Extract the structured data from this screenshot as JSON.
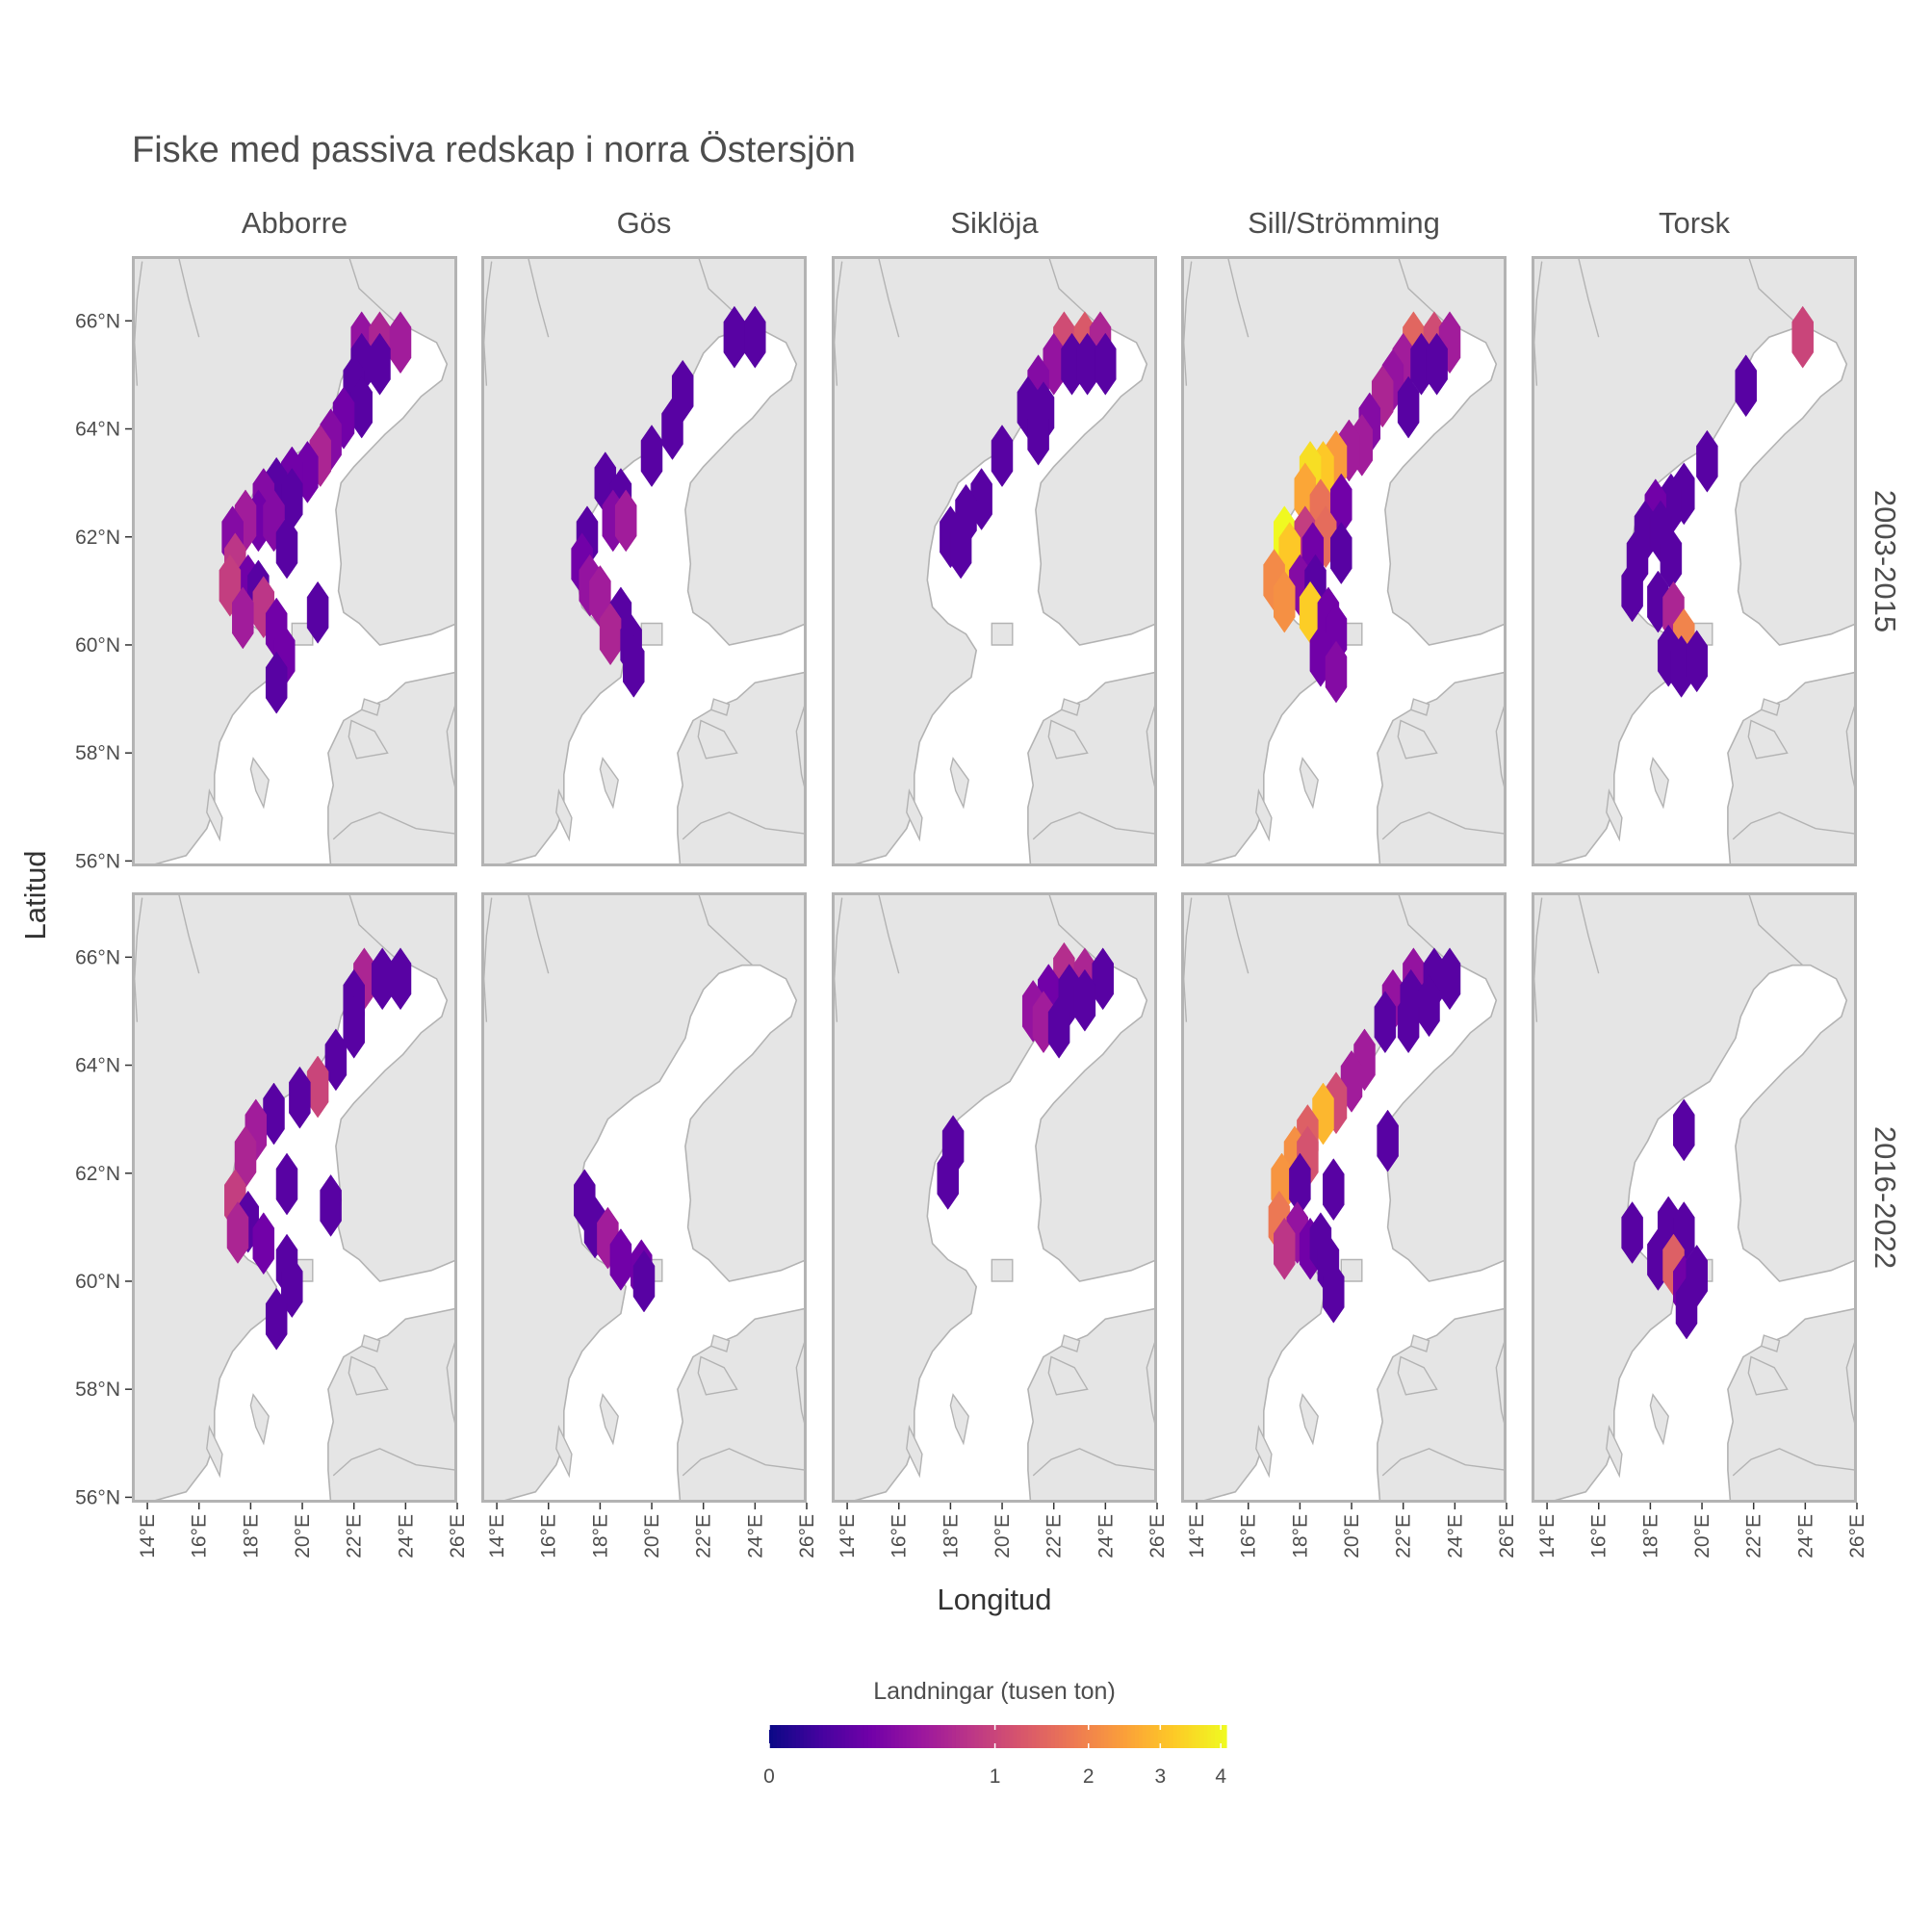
{
  "title": "Fiske med passiva redskap i norra Östersjön",
  "x_axis_title": "Longitud",
  "y_axis_title": "Latitud",
  "columns": [
    "Abborre",
    "Gös",
    "Siklöja",
    "Sill/Strömming",
    "Torsk"
  ],
  "rows": [
    "2003-2015",
    "2016-2022"
  ],
  "lon_ticks": [
    "14°E",
    "16°E",
    "18°E",
    "20°E",
    "22°E",
    "24°E",
    "26°E"
  ],
  "lat_ticks": [
    "66°N",
    "64°N",
    "62°N",
    "60°N",
    "58°N",
    "56°N"
  ],
  "map": {
    "lon_range": [
      13.4,
      26.0
    ],
    "lat_range": [
      55.9,
      67.2
    ],
    "land_color": "#e5e5e5",
    "sea_color": "#ffffff",
    "coast_color": "#b3b3b3",
    "panel_border_color": "#b3b3b3"
  },
  "legend": {
    "title": "Landningar (tusen ton)",
    "ticks": [
      "0",
      "1",
      "2",
      "3",
      "4"
    ],
    "scale": "sqrt",
    "max": 4.1,
    "palette": [
      "#0d0887",
      "#46039f",
      "#7201a8",
      "#9c179e",
      "#bd3786",
      "#d8576b",
      "#ed7953",
      "#fb9f3a",
      "#fdca26",
      "#f0f921"
    ]
  },
  "chart_data": {
    "type": "heatmap",
    "description_units": "landings in thousand tonnes per hexagonal cell; cells given as [lon, lat, value]",
    "panels": [
      {
        "species": "Abborre",
        "period": "2003-2015",
        "cells": [
          [
            22.3,
            65.6,
            0.4
          ],
          [
            23.0,
            65.6,
            0.6
          ],
          [
            23.8,
            65.6,
            0.5
          ],
          [
            22.3,
            65.2,
            0.1
          ],
          [
            23.0,
            65.2,
            0.1
          ],
          [
            22.0,
            64.8,
            0.1
          ],
          [
            22.3,
            64.4,
            0.1
          ],
          [
            21.6,
            64.2,
            0.2
          ],
          [
            21.1,
            63.8,
            0.3
          ],
          [
            20.7,
            63.5,
            0.6
          ],
          [
            20.2,
            63.2,
            0.2
          ],
          [
            19.6,
            63.1,
            0.2
          ],
          [
            19.0,
            62.9,
            0.1
          ],
          [
            18.5,
            62.7,
            0.3
          ],
          [
            19.6,
            62.7,
            0.1
          ],
          [
            18.3,
            62.3,
            0.2
          ],
          [
            18.9,
            62.3,
            0.3
          ],
          [
            17.8,
            62.3,
            0.5
          ],
          [
            17.3,
            62.0,
            0.3
          ],
          [
            19.4,
            61.8,
            0.1
          ],
          [
            17.4,
            61.5,
            0.8
          ],
          [
            17.9,
            61.1,
            0.2
          ],
          [
            18.3,
            61.0,
            0.1
          ],
          [
            17.2,
            61.1,
            0.9
          ],
          [
            18.5,
            60.7,
            0.8
          ],
          [
            20.6,
            60.6,
            0.1
          ],
          [
            17.7,
            60.5,
            0.5
          ],
          [
            19.0,
            60.3,
            0.2
          ],
          [
            19.3,
            59.8,
            0.2
          ],
          [
            19.0,
            59.3,
            0.1
          ]
        ]
      },
      {
        "species": "Gös",
        "period": "2003-2015",
        "cells": [
          [
            23.2,
            65.7,
            0.1
          ],
          [
            24.0,
            65.7,
            0.1
          ],
          [
            21.2,
            64.7,
            0.1
          ],
          [
            20.8,
            64.0,
            0.1
          ],
          [
            20.0,
            63.5,
            0.1
          ],
          [
            18.2,
            63.0,
            0.1
          ],
          [
            18.8,
            62.7,
            0.1
          ],
          [
            18.5,
            62.3,
            0.3
          ],
          [
            19.0,
            62.3,
            0.5
          ],
          [
            17.5,
            62.0,
            0.1
          ],
          [
            17.3,
            61.5,
            0.2
          ],
          [
            17.6,
            61.1,
            0.4
          ],
          [
            18.0,
            60.9,
            0.5
          ],
          [
            18.8,
            60.5,
            0.1
          ],
          [
            18.4,
            60.2,
            0.6
          ],
          [
            19.2,
            60.0,
            0.1
          ],
          [
            19.3,
            59.6,
            0.1
          ]
        ]
      },
      {
        "species": "Siklöja",
        "period": "2003-2015",
        "cells": [
          [
            22.4,
            65.6,
            1.1
          ],
          [
            23.2,
            65.6,
            1.3
          ],
          [
            23.8,
            65.6,
            0.6
          ],
          [
            22.0,
            65.2,
            0.4
          ],
          [
            22.7,
            65.2,
            0.1
          ],
          [
            23.3,
            65.2,
            0.1
          ],
          [
            24.0,
            65.2,
            0.1
          ],
          [
            21.4,
            64.8,
            0.3
          ],
          [
            21.0,
            64.4,
            0.1
          ],
          [
            21.6,
            64.3,
            0.1
          ],
          [
            21.4,
            63.9,
            0.1
          ],
          [
            20.0,
            63.5,
            0.1
          ],
          [
            19.2,
            62.7,
            0.1
          ],
          [
            18.6,
            62.4,
            0.1
          ],
          [
            18.0,
            62.0,
            0.1
          ],
          [
            18.4,
            61.8,
            0.1
          ]
        ]
      },
      {
        "species": "Sill/Strömming",
        "period": "2003-2015",
        "cells": [
          [
            22.4,
            65.6,
            1.5
          ],
          [
            23.2,
            65.6,
            1.1
          ],
          [
            23.8,
            65.6,
            0.5
          ],
          [
            22.0,
            65.2,
            0.5
          ],
          [
            22.7,
            65.2,
            0.1
          ],
          [
            23.3,
            65.2,
            0.1
          ],
          [
            21.6,
            64.9,
            0.4
          ],
          [
            21.2,
            64.6,
            0.6
          ],
          [
            22.2,
            64.4,
            0.1
          ],
          [
            20.7,
            64.1,
            0.3
          ],
          [
            20.4,
            63.7,
            0.5
          ],
          [
            19.9,
            63.6,
            0.5
          ],
          [
            19.4,
            63.4,
            2.4
          ],
          [
            18.9,
            63.2,
            3.2
          ],
          [
            18.4,
            63.2,
            3.6
          ],
          [
            18.2,
            62.8,
            2.6
          ],
          [
            18.8,
            62.5,
            1.7
          ],
          [
            19.6,
            62.6,
            0.2
          ],
          [
            17.4,
            62.0,
            4.1
          ],
          [
            18.2,
            62.0,
            0.9
          ],
          [
            19.0,
            62.0,
            1.6
          ],
          [
            17.6,
            61.7,
            3.2
          ],
          [
            18.5,
            61.7,
            0.2
          ],
          [
            19.6,
            61.7,
            0.1
          ],
          [
            17.0,
            61.2,
            2.1
          ],
          [
            18.0,
            61.1,
            0.3
          ],
          [
            18.6,
            61.1,
            0.1
          ],
          [
            17.4,
            60.8,
            2.2
          ],
          [
            18.4,
            60.6,
            3.3
          ],
          [
            19.1,
            60.5,
            0.2
          ],
          [
            19.4,
            60.2,
            0.2
          ],
          [
            18.8,
            59.8,
            0.2
          ],
          [
            19.4,
            59.5,
            0.3
          ]
        ]
      },
      {
        "species": "Torsk",
        "period": "2003-2015",
        "cells": [
          [
            23.9,
            65.7,
            1.0
          ],
          [
            21.7,
            64.8,
            0.1
          ],
          [
            20.2,
            63.4,
            0.1
          ],
          [
            19.3,
            62.8,
            0.1
          ],
          [
            18.8,
            62.6,
            0.1
          ],
          [
            18.2,
            62.5,
            0.2
          ],
          [
            17.8,
            62.1,
            0.1
          ],
          [
            18.4,
            62.1,
            0.1
          ],
          [
            17.5,
            61.6,
            0.1
          ],
          [
            18.8,
            61.6,
            0.1
          ],
          [
            17.3,
            61.0,
            0.1
          ],
          [
            18.3,
            60.8,
            0.1
          ],
          [
            18.9,
            60.6,
            0.6
          ],
          [
            19.3,
            60.1,
            2.0
          ],
          [
            18.7,
            59.8,
            0.1
          ],
          [
            19.2,
            59.6,
            0.1
          ],
          [
            19.8,
            59.7,
            0.1
          ]
        ]
      },
      {
        "species": "Abborre",
        "period": "2016-2022",
        "cells": [
          [
            22.4,
            65.6,
            0.6
          ],
          [
            23.1,
            65.6,
            0.1
          ],
          [
            23.8,
            65.6,
            0.1
          ],
          [
            22.0,
            65.2,
            0.1
          ],
          [
            22.0,
            64.7,
            0.1
          ],
          [
            21.3,
            64.1,
            0.1
          ],
          [
            20.6,
            63.6,
            1.0
          ],
          [
            19.9,
            63.4,
            0.1
          ],
          [
            18.9,
            63.1,
            0.1
          ],
          [
            18.2,
            62.8,
            0.5
          ],
          [
            17.8,
            62.3,
            0.6
          ],
          [
            19.4,
            61.8,
            0.1
          ],
          [
            17.4,
            61.5,
            0.9
          ],
          [
            21.1,
            61.4,
            0.1
          ],
          [
            17.9,
            61.1,
            0.1
          ],
          [
            18.5,
            60.7,
            0.2
          ],
          [
            17.5,
            60.9,
            0.6
          ],
          [
            19.4,
            60.3,
            0.1
          ],
          [
            19.6,
            59.9,
            0.1
          ],
          [
            19.0,
            59.3,
            0.1
          ]
        ]
      },
      {
        "species": "Gös",
        "period": "2016-2022",
        "cells": [
          [
            17.4,
            61.5,
            0.1
          ],
          [
            17.8,
            61.0,
            0.1
          ],
          [
            18.3,
            60.8,
            0.5
          ],
          [
            18.8,
            60.4,
            0.2
          ],
          [
            19.6,
            60.2,
            0.2
          ],
          [
            19.7,
            60.0,
            0.1
          ]
        ]
      },
      {
        "species": "Siklöja",
        "period": "2016-2022",
        "cells": [
          [
            22.4,
            65.7,
            0.7
          ],
          [
            23.2,
            65.6,
            0.6
          ],
          [
            23.9,
            65.6,
            0.1
          ],
          [
            21.8,
            65.3,
            0.2
          ],
          [
            22.6,
            65.3,
            0.1
          ],
          [
            23.2,
            65.2,
            0.1
          ],
          [
            21.2,
            65.0,
            0.4
          ],
          [
            21.6,
            64.8,
            0.5
          ],
          [
            22.2,
            64.7,
            0.1
          ],
          [
            18.1,
            62.5,
            0.1
          ],
          [
            17.9,
            61.9,
            0.1
          ]
        ]
      },
      {
        "species": "Sill/Strömming",
        "period": "2016-2022",
        "cells": [
          [
            22.4,
            65.6,
            0.4
          ],
          [
            23.2,
            65.6,
            0.1
          ],
          [
            23.8,
            65.6,
            0.1
          ],
          [
            21.6,
            65.2,
            0.4
          ],
          [
            22.3,
            65.2,
            0.1
          ],
          [
            23.0,
            65.1,
            0.1
          ],
          [
            21.3,
            64.8,
            0.1
          ],
          [
            22.2,
            64.8,
            0.1
          ],
          [
            20.5,
            64.1,
            0.5
          ],
          [
            20.0,
            63.7,
            0.5
          ],
          [
            19.4,
            63.3,
            1.1
          ],
          [
            18.9,
            63.1,
            2.9
          ],
          [
            18.3,
            62.7,
            1.4
          ],
          [
            17.8,
            62.3,
            2.2
          ],
          [
            18.3,
            62.3,
            1.2
          ],
          [
            21.4,
            62.6,
            0.1
          ],
          [
            17.3,
            61.8,
            2.3
          ],
          [
            18.0,
            61.8,
            0.1
          ],
          [
            19.3,
            61.7,
            0.1
          ],
          [
            17.2,
            61.1,
            1.8
          ],
          [
            17.9,
            60.9,
            0.4
          ],
          [
            18.4,
            60.6,
            0.2
          ],
          [
            18.8,
            60.7,
            0.1
          ],
          [
            17.4,
            60.6,
            0.8
          ],
          [
            19.1,
            60.3,
            0.1
          ],
          [
            19.3,
            59.8,
            0.1
          ]
        ]
      },
      {
        "species": "Torsk",
        "period": "2016-2022",
        "cells": [
          [
            19.3,
            62.8,
            0.1
          ],
          [
            17.3,
            60.9,
            0.1
          ],
          [
            18.7,
            61.0,
            0.1
          ],
          [
            19.3,
            60.9,
            0.1
          ],
          [
            18.3,
            60.4,
            0.1
          ],
          [
            18.9,
            60.3,
            1.4
          ],
          [
            19.3,
            59.9,
            0.2
          ],
          [
            19.8,
            60.1,
            0.1
          ],
          [
            19.4,
            59.5,
            0.1
          ]
        ]
      }
    ]
  }
}
